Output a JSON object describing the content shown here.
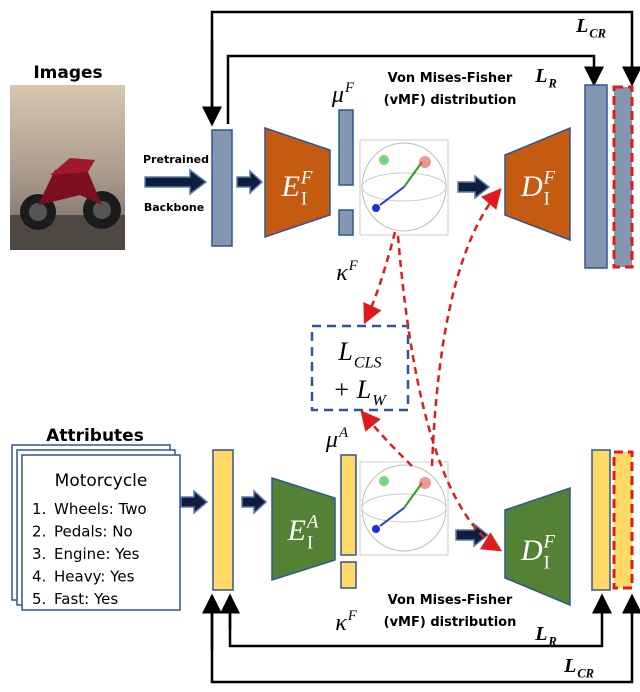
{
  "top": {
    "images_label": "Images",
    "backbone": [
      "Pretrained",
      "Backbone"
    ],
    "mu": {
      "base": "μ",
      "sup": "F"
    },
    "kappa": {
      "base": "κ",
      "sup": "F"
    },
    "vmf": [
      "Von Mises-Fisher",
      "(vMF) distribution"
    ],
    "encoder": {
      "base": "E",
      "sub": "I",
      "sup": "F"
    },
    "decoder": {
      "base": "D",
      "sub": "I",
      "sup": "F"
    },
    "loss_r": {
      "base": "L",
      "sub": "R"
    },
    "loss_cr": {
      "base": "L",
      "sub": "CR"
    }
  },
  "center_loss": {
    "line1": {
      "base": "L",
      "sub": "CLS"
    },
    "line2": {
      "plus": "+",
      "base": "L",
      "sub": "W"
    }
  },
  "bottom": {
    "attributes_label": "Attributes",
    "card_title": "Motorcycle",
    "items": [
      {
        "num": "1.",
        "text": "Wheels: Two"
      },
      {
        "num": "2.",
        "text": "Pedals: No"
      },
      {
        "num": "3.",
        "text": "Engine: Yes"
      },
      {
        "num": "4.",
        "text": "Heavy: Yes"
      },
      {
        "num": "5.",
        "text": "Fast: Yes"
      }
    ],
    "mu": {
      "base": "μ",
      "sup": "A"
    },
    "kappa": {
      "base": "κ",
      "sup": "F"
    },
    "vmf": [
      "Von Mises-Fisher",
      "(vMF) distribution"
    ],
    "encoder": {
      "base": "E",
      "sub": "I",
      "sup": "A"
    },
    "decoder": {
      "base": "D",
      "sub": "I",
      "sup": "F"
    },
    "loss_r": {
      "base": "L",
      "sub": "R"
    },
    "loss_cr": {
      "base": "L",
      "sub": "CR"
    }
  }
}
